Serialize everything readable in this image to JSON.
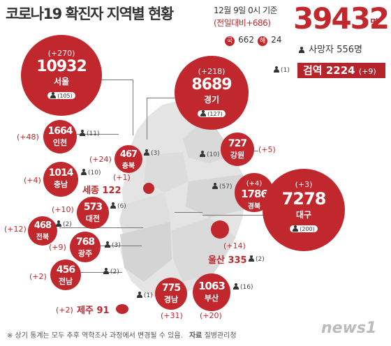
{
  "header": {
    "title": "코로나19 확진자 지역별 현황",
    "date": "12월 9일 0시 기준",
    "change": "(전일대비+686)",
    "total": "39432",
    "total_unit": "명",
    "domestic_label": "국",
    "domestic": "662",
    "overseas_label": "해",
    "overseas": "24",
    "deaths_label": "사망자",
    "deaths": "556명"
  },
  "quarantine": {
    "label": "검역",
    "value": "2224",
    "inc": "(+9)",
    "death": "(1)"
  },
  "regions": {
    "seoul": {
      "name": "서울",
      "count": "10932",
      "inc": "(+270)",
      "death": "(105)"
    },
    "gyeonggi": {
      "name": "경기",
      "count": "8689",
      "inc": "(+218)",
      "death": "(127)"
    },
    "incheon": {
      "name": "인천",
      "count": "1664",
      "inc": "(+48)",
      "death": "(11)"
    },
    "chungbuk": {
      "name": "충북",
      "count": "467",
      "inc": "(+24)",
      "death": "(3)"
    },
    "gangwon": {
      "name": "강원",
      "count": "727",
      "inc": "(+5)",
      "death": "(10)"
    },
    "chungnam": {
      "name": "충남",
      "count": "1014",
      "inc": "(+4)",
      "death": "(10)"
    },
    "sejong": {
      "name": "세종",
      "count": "122",
      "inc": "(+1)"
    },
    "gyeongbuk": {
      "name": "경북",
      "count": "1786",
      "inc": "(+4)",
      "death": "(57)"
    },
    "daegu": {
      "name": "대구",
      "count": "7278",
      "inc": "(+3)",
      "death": "(200)"
    },
    "daejeon": {
      "name": "대전",
      "count": "573",
      "inc": "(+10)",
      "death": "(6)"
    },
    "jeonbuk": {
      "name": "전북",
      "count": "468",
      "inc": "(+12)",
      "death": "(2)"
    },
    "ulsan": {
      "name": "울산",
      "count": "335",
      "inc": "(+14)",
      "death": "(2)"
    },
    "gwangju": {
      "name": "광주",
      "count": "768",
      "inc": "(+9)",
      "death": "(3)"
    },
    "jeonnam": {
      "name": "전남",
      "count": "456",
      "inc": "(+2)",
      "death": "(2)"
    },
    "gyeongnam": {
      "name": "경남",
      "count": "775",
      "inc": "(+31)",
      "death": "(1)"
    },
    "busan": {
      "name": "부산",
      "count": "1063",
      "inc": "(+20)",
      "death": "(16)"
    },
    "jeju": {
      "name": "제주",
      "count": "91",
      "inc": "(+2)"
    }
  },
  "footer": {
    "note": "※ 상기 통계는 모두 추후 역학조사 과정에서 변경될 수 있음.",
    "source_label": "자료",
    "source": "질병관리청",
    "logo": "news1"
  },
  "colors": {
    "accent": "#c0282e",
    "map": "#e4e4e4"
  }
}
